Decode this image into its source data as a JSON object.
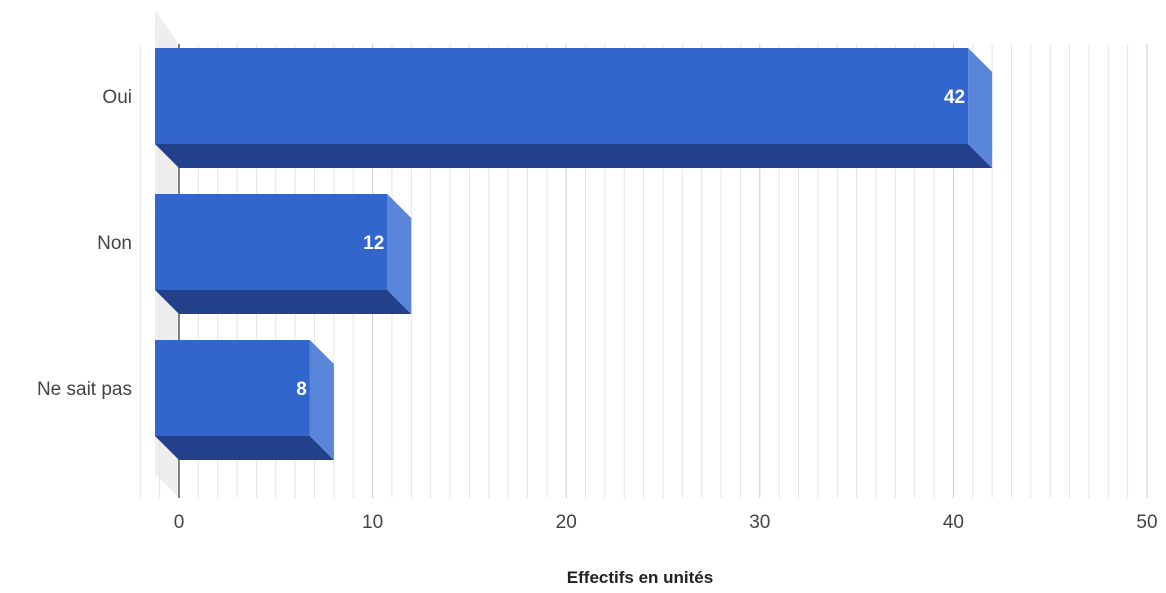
{
  "chart_data": {
    "type": "bar",
    "orientation": "horizontal",
    "style": "3d",
    "categories": [
      "Oui",
      "Non",
      "Ne sait pas"
    ],
    "values": [
      42,
      12,
      8
    ],
    "data_labels": [
      "42",
      "12",
      "8"
    ],
    "title": "",
    "xlabel": "Effectifs en unités",
    "ylabel": "",
    "xlim": [
      0,
      50
    ],
    "major_ticks": [
      0,
      10,
      20,
      30,
      40,
      50
    ],
    "tick_labels": [
      "0",
      "10",
      "20",
      "30",
      "40",
      "50"
    ],
    "minor_tick_step": 1,
    "grid": true,
    "legend": "none",
    "colors": {
      "bar_front": "#3366cc",
      "bar_side": "#5a86d9",
      "bar_bottom": "#22418a",
      "data_label": "#ffffff",
      "grid_major": "#cccccc",
      "grid_minor": "#e4e4e4",
      "back_wall": "#eeeeee"
    }
  }
}
